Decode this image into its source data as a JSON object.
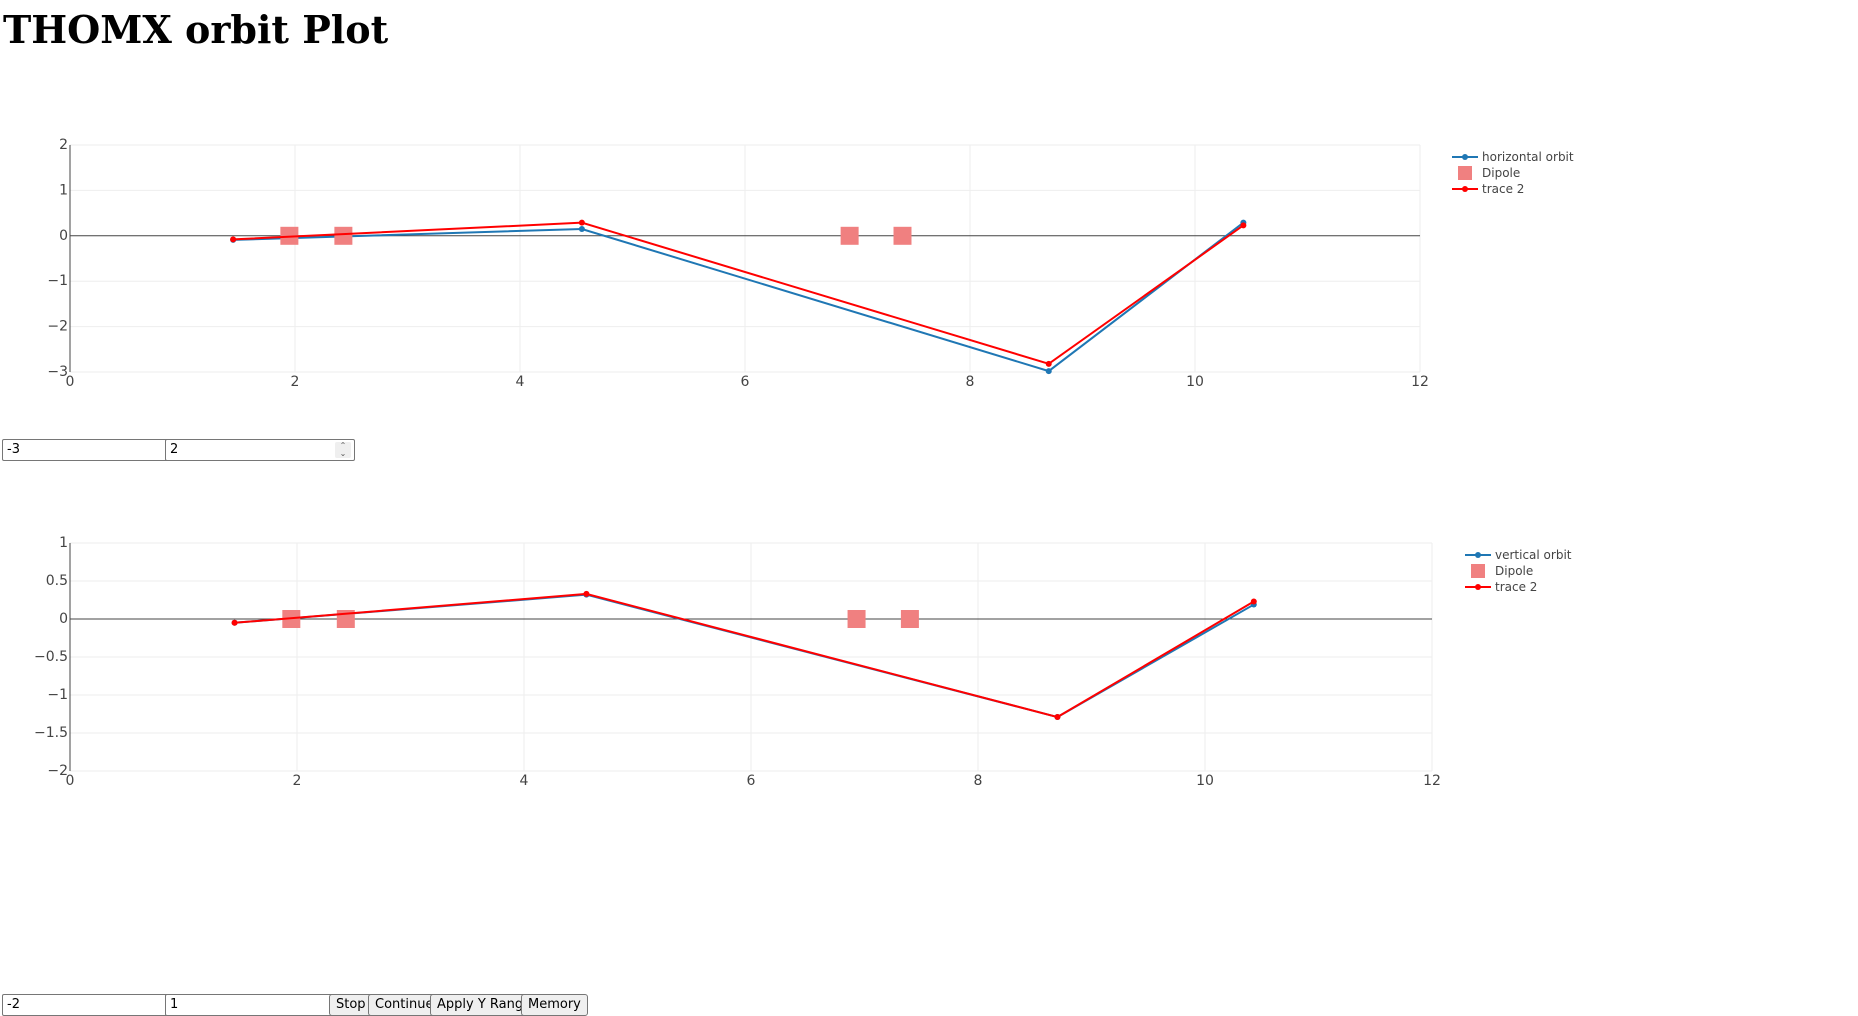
{
  "page": {
    "title": "THOMX orbit Plot"
  },
  "colors": {
    "orbit": "#1f77b4",
    "trace2": "#ff0000",
    "dipole": "#f08080"
  },
  "chart_data": [
    {
      "type": "line",
      "xlim": [
        0,
        12
      ],
      "ylim": [
        -3,
        2
      ],
      "x_ticks": [
        "0",
        "2",
        "4",
        "6",
        "8",
        "10",
        "12"
      ],
      "y_ticks": [
        "2",
        "1",
        "0",
        "−1",
        "−2",
        "−3"
      ],
      "x_tick_values": [
        0,
        2,
        4,
        6,
        8,
        10,
        12
      ],
      "y_tick_values": [
        2,
        1,
        0,
        -1,
        -2,
        -3
      ],
      "grid": true,
      "legend_position": "top-right",
      "series": [
        {
          "name": "horizontal orbit",
          "mode": "lines+markers",
          "x": [
            1.45,
            4.55,
            8.7,
            10.43
          ],
          "y": [
            -0.09,
            0.15,
            -2.98,
            0.29
          ]
        },
        {
          "name": "Dipole",
          "mode": "markers",
          "x": [
            1.95,
            2.43,
            6.93,
            7.4
          ],
          "y": [
            0,
            0,
            0,
            0
          ]
        },
        {
          "name": "trace 2",
          "mode": "lines+markers",
          "x": [
            1.45,
            4.55,
            8.7,
            10.43
          ],
          "y": [
            -0.08,
            0.29,
            -2.82,
            0.23
          ]
        }
      ]
    },
    {
      "type": "line",
      "xlim": [
        0,
        12
      ],
      "ylim": [
        -2,
        1
      ],
      "x_ticks": [
        "0",
        "2",
        "4",
        "6",
        "8",
        "10",
        "12"
      ],
      "y_ticks": [
        "1",
        "0.5",
        "0",
        "−0.5",
        "−1",
        "−1.5",
        "−2"
      ],
      "x_tick_values": [
        0,
        2,
        4,
        6,
        8,
        10,
        12
      ],
      "y_tick_values": [
        1,
        0.5,
        0,
        -0.5,
        -1,
        -1.5,
        -2
      ],
      "grid": true,
      "legend_position": "top-right",
      "series": [
        {
          "name": "vertical orbit",
          "mode": "lines+markers",
          "x": [
            1.45,
            4.55,
            8.7,
            10.43
          ],
          "y": [
            -0.05,
            0.32,
            -1.29,
            0.19
          ]
        },
        {
          "name": "Dipole",
          "mode": "markers",
          "x": [
            1.95,
            2.43,
            6.93,
            7.4
          ],
          "y": [
            0,
            0,
            0,
            0
          ]
        },
        {
          "name": "trace 2",
          "mode": "lines+markers",
          "x": [
            1.45,
            4.55,
            8.7,
            10.43
          ],
          "y": [
            -0.05,
            0.33,
            -1.29,
            0.23
          ]
        }
      ]
    }
  ],
  "controls": {
    "h_ymin": "-3",
    "h_ymax": "2",
    "v_ymin": "-2",
    "v_ymax": "1",
    "stop_label": "Stop",
    "continue_label": "Continue",
    "apply_label": "Apply Y Range",
    "memory_label": "Memory"
  }
}
